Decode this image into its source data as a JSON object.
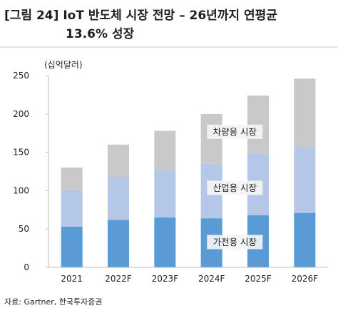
{
  "chart_data": {
    "type": "bar",
    "stacked": true,
    "title_line1": "[그림 24] IoT 반도체 시장 전망 – 26년까지 연평균",
    "title_line2": "13.6% 성장",
    "unit_label": "(십억달러)",
    "categories": [
      "2021",
      "2022F",
      "2023F",
      "2024F",
      "2025F",
      "2026F"
    ],
    "series": [
      {
        "name": "가전용 시장",
        "color": "#5b9bd5",
        "values": [
          53,
          62,
          65,
          64,
          68,
          71
        ]
      },
      {
        "name": "산업용 시장",
        "color": "#b4c7e7",
        "values": [
          48,
          56,
          62,
          71,
          80,
          86
        ]
      },
      {
        "name": "차량용 시장",
        "color": "#c9c9c9",
        "values": [
          29,
          42,
          51,
          65,
          76,
          89
        ]
      }
    ],
    "ylim": [
      0,
      250
    ],
    "yticks": [
      0,
      50,
      100,
      150,
      200,
      250
    ],
    "grid": false,
    "annotations": [
      "차량용 시장",
      "산업용 시장",
      "가전용 시장"
    ],
    "source": "자료: Gartner, 한국투자증권"
  }
}
